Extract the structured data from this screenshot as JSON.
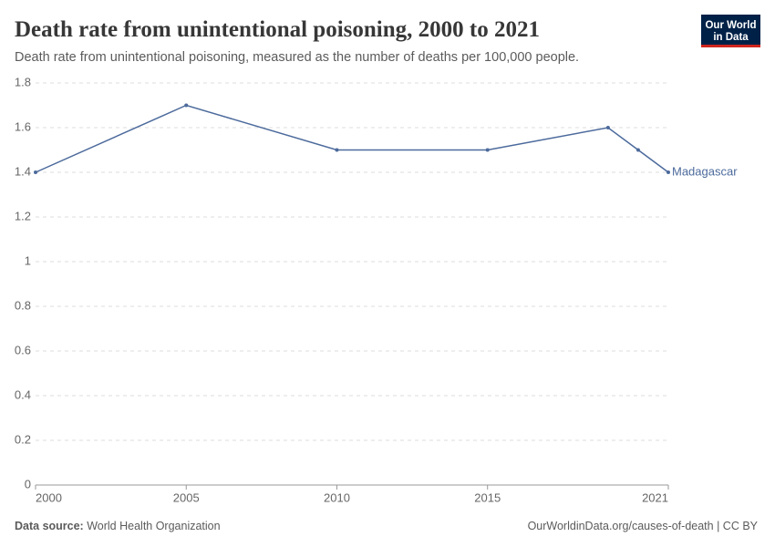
{
  "chart_data": {
    "type": "line",
    "title": "Death rate from unintentional poisoning, 2000 to 2021",
    "subtitle": "Death rate from unintentional poisoning, measured as the number of deaths per 100,000 people.",
    "logo": [
      "Our World",
      "in Data"
    ],
    "source_label": "Data source:",
    "source": "World Health Organization",
    "footer_right": "OurWorldinData.org/causes-of-death | CC BY",
    "x": [
      2000,
      2005,
      2010,
      2015,
      2019,
      2020,
      2021
    ],
    "series": [
      {
        "name": "Madagascar",
        "color": "#4c6a9c",
        "values": [
          1.4,
          1.7,
          1.5,
          1.5,
          1.6,
          1.5,
          1.4
        ]
      }
    ],
    "xlim": [
      2000,
      2021
    ],
    "xticks": [
      2000,
      2005,
      2010,
      2015,
      2021
    ],
    "ylim": [
      0,
      1.8
    ],
    "yticks": [
      0,
      0.2,
      0.4,
      0.6,
      0.8,
      1,
      1.2,
      1.4,
      1.6,
      1.8
    ],
    "grid": true
  }
}
